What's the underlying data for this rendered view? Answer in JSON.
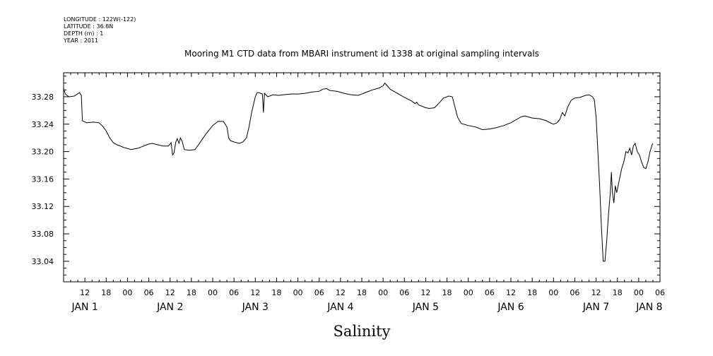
{
  "header": {
    "longitude": "LONGITUDE : 122W(-122)",
    "latitude": "LATITUDE : 36.8N",
    "depth": "DEPTH (m) : 1",
    "year": "YEAR : 2011"
  },
  "chart_data": {
    "type": "line",
    "title": "Mooring M1 CTD data from MBARI instrument id 1338 at original sampling intervals",
    "xlabel": "Salinity",
    "ylabel": "",
    "ylim": [
      33.01,
      33.315
    ],
    "xlim_hours": [
      6,
      174
    ],
    "grid": false,
    "y_ticks": [
      "33.04",
      "33.08",
      "33.12",
      "33.16",
      "33.20",
      "33.24",
      "33.28"
    ],
    "hour_ticks": [
      "12",
      "18",
      "00",
      "06",
      "12",
      "18",
      "00",
      "06",
      "12",
      "18",
      "00",
      "06",
      "12",
      "18",
      "00",
      "06",
      "12",
      "18",
      "00",
      "06",
      "12",
      "18",
      "00",
      "06",
      "12",
      "18",
      "00",
      "06"
    ],
    "day_labels": [
      "JAN  1",
      "JAN  2",
      "JAN  3",
      "JAN  4",
      "JAN  5",
      "JAN  6",
      "JAN  7",
      "JAN  8"
    ],
    "series": [
      {
        "points": [
          [
            6.0,
            33.292
          ],
          [
            6.5,
            33.284
          ],
          [
            7.5,
            33.28
          ],
          [
            9.0,
            33.281
          ],
          [
            10.5,
            33.286
          ],
          [
            11.0,
            33.282
          ],
          [
            11.3,
            33.245
          ],
          [
            12.5,
            33.242
          ],
          [
            14.5,
            33.243
          ],
          [
            16.0,
            33.242
          ],
          [
            17.0,
            33.237
          ],
          [
            18.0,
            33.23
          ],
          [
            19.0,
            33.22
          ],
          [
            20.0,
            33.213
          ],
          [
            21.0,
            33.21
          ],
          [
            23.0,
            33.206
          ],
          [
            25.0,
            33.203
          ],
          [
            27.0,
            33.205
          ],
          [
            28.5,
            33.208
          ],
          [
            30.0,
            33.211
          ],
          [
            31.0,
            33.212
          ],
          [
            32.5,
            33.21
          ],
          [
            34.0,
            33.208
          ],
          [
            35.5,
            33.208
          ],
          [
            36.3,
            33.213
          ],
          [
            36.7,
            33.195
          ],
          [
            37.1,
            33.198
          ],
          [
            37.6,
            33.214
          ],
          [
            38.0,
            33.219
          ],
          [
            38.5,
            33.212
          ],
          [
            38.9,
            33.22
          ],
          [
            39.4,
            33.215
          ],
          [
            40.0,
            33.203
          ],
          [
            41.5,
            33.202
          ],
          [
            43.0,
            33.203
          ],
          [
            44.0,
            33.21
          ],
          [
            46.0,
            33.225
          ],
          [
            48.0,
            33.238
          ],
          [
            49.5,
            33.244
          ],
          [
            51.0,
            33.244
          ],
          [
            52.0,
            33.236
          ],
          [
            52.5,
            33.22
          ],
          [
            53.0,
            33.216
          ],
          [
            54.0,
            33.214
          ],
          [
            55.5,
            33.212
          ],
          [
            56.5,
            33.214
          ],
          [
            57.5,
            33.22
          ],
          [
            58.2,
            33.235
          ],
          [
            59.0,
            33.258
          ],
          [
            60.0,
            33.28
          ],
          [
            60.5,
            33.286
          ],
          [
            61.0,
            33.286
          ],
          [
            62.0,
            33.284
          ],
          [
            62.3,
            33.257
          ],
          [
            62.6,
            33.285
          ],
          [
            63.5,
            33.28
          ],
          [
            65.0,
            33.283
          ],
          [
            66.5,
            33.282
          ],
          [
            68.0,
            33.283
          ],
          [
            70.0,
            33.284
          ],
          [
            72.0,
            33.284
          ],
          [
            74.0,
            33.285
          ],
          [
            76.0,
            33.287
          ],
          [
            78.0,
            33.288
          ],
          [
            79.0,
            33.291
          ],
          [
            80.0,
            33.292
          ],
          [
            81.0,
            33.289
          ],
          [
            83.0,
            33.288
          ],
          [
            85.0,
            33.285
          ],
          [
            87.0,
            33.283
          ],
          [
            89.0,
            33.282
          ],
          [
            91.0,
            33.286
          ],
          [
            93.0,
            33.29
          ],
          [
            95.0,
            33.293
          ],
          [
            96.0,
            33.296
          ],
          [
            96.5,
            33.3
          ],
          [
            97.0,
            33.297
          ],
          [
            98.0,
            33.291
          ],
          [
            100.0,
            33.285
          ],
          [
            102.0,
            33.279
          ],
          [
            104.0,
            33.274
          ],
          [
            105.0,
            33.27
          ],
          [
            105.5,
            33.272
          ],
          [
            106.0,
            33.268
          ],
          [
            108.0,
            33.264
          ],
          [
            109.0,
            33.263
          ],
          [
            110.5,
            33.264
          ],
          [
            112.0,
            33.272
          ],
          [
            113.0,
            33.278
          ],
          [
            114.5,
            33.281
          ],
          [
            115.5,
            33.28
          ],
          [
            116.0,
            33.27
          ],
          [
            117.0,
            33.25
          ],
          [
            118.0,
            33.241
          ],
          [
            120.0,
            33.238
          ],
          [
            122.0,
            33.236
          ],
          [
            124.0,
            33.232
          ],
          [
            126.0,
            33.233
          ],
          [
            128.0,
            33.235
          ],
          [
            130.0,
            33.238
          ],
          [
            132.0,
            33.242
          ],
          [
            134.0,
            33.248
          ],
          [
            135.0,
            33.251
          ],
          [
            136.0,
            33.252
          ],
          [
            138.0,
            33.249
          ],
          [
            140.0,
            33.248
          ],
          [
            142.0,
            33.245
          ],
          [
            143.0,
            33.242
          ],
          [
            144.0,
            33.24
          ],
          [
            145.0,
            33.242
          ],
          [
            145.8,
            33.247
          ],
          [
            146.5,
            33.257
          ],
          [
            147.2,
            33.252
          ],
          [
            148.0,
            33.265
          ],
          [
            149.0,
            33.275
          ],
          [
            150.0,
            33.278
          ],
          [
            151.5,
            33.279
          ],
          [
            153.0,
            33.282
          ],
          [
            154.0,
            33.283
          ],
          [
            155.0,
            33.28
          ],
          [
            155.5,
            33.275
          ],
          [
            156.0,
            33.25
          ],
          [
            156.5,
            33.2
          ],
          [
            157.0,
            33.15
          ],
          [
            157.5,
            33.09
          ],
          [
            158.0,
            33.04
          ],
          [
            158.5,
            33.04
          ],
          [
            159.0,
            33.07
          ],
          [
            159.5,
            33.11
          ],
          [
            160.0,
            33.14
          ],
          [
            160.3,
            33.17
          ],
          [
            160.6,
            33.14
          ],
          [
            161.0,
            33.125
          ],
          [
            161.4,
            33.15
          ],
          [
            161.8,
            33.14
          ],
          [
            162.2,
            33.15
          ],
          [
            162.6,
            33.16
          ],
          [
            163.2,
            33.175
          ],
          [
            163.8,
            33.185
          ],
          [
            164.4,
            33.2
          ],
          [
            165.0,
            33.198
          ],
          [
            165.5,
            33.205
          ],
          [
            166.0,
            33.195
          ],
          [
            166.5,
            33.208
          ],
          [
            167.0,
            33.212
          ],
          [
            167.6,
            33.2
          ],
          [
            168.2,
            33.195
          ],
          [
            168.8,
            33.185
          ],
          [
            169.4,
            33.177
          ],
          [
            170.0,
            33.175
          ],
          [
            170.6,
            33.185
          ],
          [
            171.2,
            33.2
          ],
          [
            171.8,
            33.21
          ],
          [
            172.0,
            33.212
          ]
        ]
      }
    ]
  }
}
